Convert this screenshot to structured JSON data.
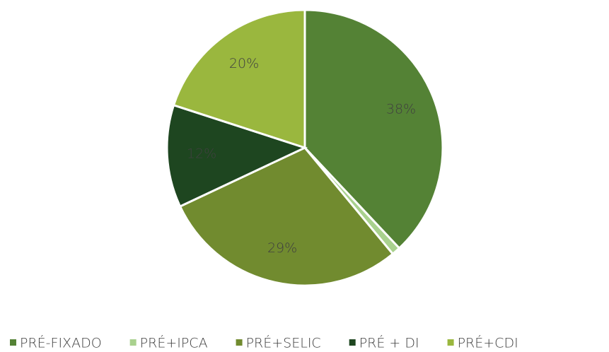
{
  "chart_data": {
    "type": "pie",
    "categories": [
      "PRÉ-FIXADO",
      "PRÉ+IPCA",
      "PRÉ+SELIC",
      "PRÉ + DI",
      "PRÉ+CDI"
    ],
    "values": [
      38,
      1,
      29,
      12,
      20
    ],
    "value_labels": [
      "38%",
      null,
      "29%",
      "12%",
      "20%"
    ],
    "colors": [
      "#548235",
      "#a9d18e",
      "#718b2f",
      "#1e4620",
      "#9ab73e"
    ],
    "legend": "bottom"
  }
}
